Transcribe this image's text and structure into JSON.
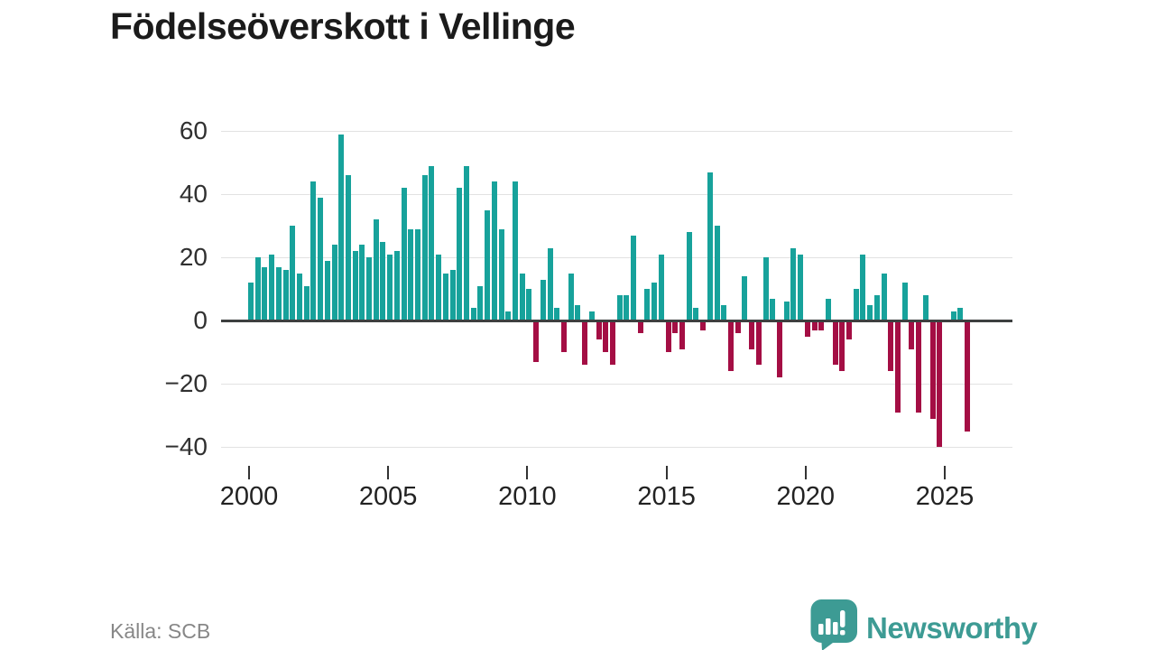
{
  "title": "Födelseöverskott i Vellinge",
  "footer": {
    "source": "Källa: SCB"
  },
  "branding": {
    "name": "Newsworthy",
    "icon": "newsworthy-speech-bubble-chart-icon",
    "color": "#3d9b94"
  },
  "chart_data": {
    "type": "bar",
    "title": "Födelseöverskott i Vellinge",
    "frequency": "quarterly",
    "start": "2000-Q1",
    "end": "2025-Q4",
    "values": [
      12,
      20,
      17,
      21,
      17,
      16,
      30,
      15,
      11,
      44,
      39,
      19,
      24,
      59,
      46,
      22,
      24,
      20,
      32,
      25,
      21,
      22,
      42,
      29,
      29,
      46,
      49,
      21,
      15,
      16,
      42,
      49,
      4,
      11,
      35,
      44,
      29,
      3,
      44,
      15,
      10,
      -13,
      13,
      23,
      4,
      -10,
      15,
      5,
      -14,
      3,
      -6,
      -10,
      -14,
      8,
      8,
      27,
      -4,
      10,
      12,
      21,
      -10,
      -4,
      -9,
      28,
      4,
      -3,
      47,
      30,
      5,
      -16,
      -4,
      14,
      -9,
      -14,
      20,
      7,
      -18,
      6,
      23,
      21,
      -5,
      -3,
      -3,
      7,
      -14,
      -16,
      -6,
      10,
      21,
      5,
      8,
      15,
      -16,
      -29,
      12,
      -9,
      -29,
      8,
      -31,
      -40,
      0,
      3,
      4,
      -35
    ],
    "x_tick_labels": [
      "2000",
      "2005",
      "2010",
      "2015",
      "2020",
      "2025"
    ],
    "y_ticks": [
      60,
      40,
      20,
      0,
      -20,
      -40
    ],
    "y_tick_labels": [
      "60",
      "40",
      "20",
      "0",
      "−20",
      "−40"
    ],
    "ylim": [
      -44,
      62
    ],
    "grid": "horizontal",
    "legend": "none",
    "positive_color": "#17a29b",
    "negative_color": "#a40e44"
  }
}
